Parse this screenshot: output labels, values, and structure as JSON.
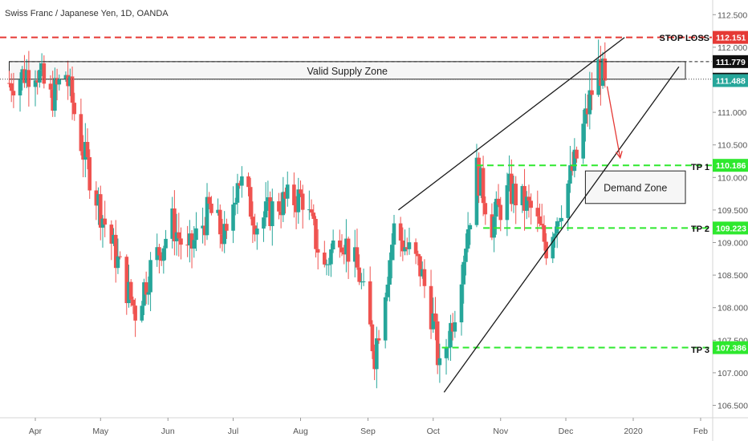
{
  "header": {
    "symbol_text": "Swiss Franc / Japanese Yen, 1D, OANDA"
  },
  "colors": {
    "up": "#26a69a",
    "down": "#ef5350",
    "stop": "#e53935",
    "tp": "#2ee82e",
    "line": "#1a1a1a",
    "current_price_bg": "#26a69a",
    "arrow": "#e53935"
  },
  "chart_data": {
    "type": "candlestick",
    "timeframe": "1D",
    "x_axis": {
      "ticks": [
        "Apr",
        "May",
        "Jun",
        "Jul",
        "Aug",
        "Sep",
        "Oct",
        "Nov",
        "Dec",
        "2020",
        "Feb"
      ],
      "range": [
        "2019-03-18",
        "2020-02-10"
      ]
    },
    "y_axis": {
      "range": [
        106.2,
        112.7
      ],
      "ticks": [
        "106.500",
        "107.000",
        "107.500",
        "108.000",
        "108.500",
        "109.000",
        "109.500",
        "110.000",
        "110.500",
        "111.000",
        "111.500",
        "112.000",
        "112.500"
      ]
    },
    "anchors": [
      {
        "date": "2019-03-20",
        "close": 111.45
      },
      {
        "date": "2019-04-01",
        "close": 111.7
      },
      {
        "date": "2019-04-08",
        "close": 111.2
      },
      {
        "date": "2019-04-15",
        "close": 111.6
      },
      {
        "date": "2019-04-23",
        "close": 110.4
      },
      {
        "date": "2019-05-01",
        "close": 109.5
      },
      {
        "date": "2019-05-13",
        "close": 108.3
      },
      {
        "date": "2019-05-17",
        "close": 107.95
      },
      {
        "date": "2019-05-24",
        "close": 108.6
      },
      {
        "date": "2019-06-03",
        "close": 109.3
      },
      {
        "date": "2019-06-10",
        "close": 108.8
      },
      {
        "date": "2019-06-20",
        "close": 109.5
      },
      {
        "date": "2019-06-28",
        "close": 109.0
      },
      {
        "date": "2019-07-03",
        "close": 110.05
      },
      {
        "date": "2019-07-12",
        "close": 109.3
      },
      {
        "date": "2019-07-22",
        "close": 109.6
      },
      {
        "date": "2019-08-02",
        "close": 109.7
      },
      {
        "date": "2019-08-12",
        "close": 108.6
      },
      {
        "date": "2019-08-19",
        "close": 109.2
      },
      {
        "date": "2019-08-28",
        "close": 108.5
      },
      {
        "date": "2019-09-04",
        "close": 107.3
      },
      {
        "date": "2019-09-13",
        "close": 109.2
      },
      {
        "date": "2019-09-25",
        "close": 108.6
      },
      {
        "date": "2019-10-01",
        "close": 107.8
      },
      {
        "date": "2019-10-04",
        "close": 107.0
      },
      {
        "date": "2019-10-11",
        "close": 108.0
      },
      {
        "date": "2019-10-21",
        "close": 110.1
      },
      {
        "date": "2019-10-28",
        "close": 109.3
      },
      {
        "date": "2019-11-05",
        "close": 109.8
      },
      {
        "date": "2019-11-15",
        "close": 109.5
      },
      {
        "date": "2019-11-22",
        "close": 108.95
      },
      {
        "date": "2019-11-29",
        "close": 109.6
      },
      {
        "date": "2019-12-06",
        "close": 110.3
      },
      {
        "date": "2019-12-12",
        "close": 111.2
      },
      {
        "date": "2019-12-16",
        "close": 111.7
      },
      {
        "date": "2019-12-19",
        "close": 111.488
      }
    ],
    "levels": [
      {
        "name": "STOP LOSS",
        "price": 112.151,
        "label": "112.151",
        "style": "dashed-red"
      },
      {
        "name": "zone-top",
        "price": 111.779,
        "label": "111.779",
        "style": "dashed-black"
      },
      {
        "name": "zone-bottom",
        "price": 111.509,
        "label": "111.509",
        "style": "dotted-black"
      },
      {
        "name": "current",
        "price": 111.488,
        "label": "111.488",
        "style": "tag"
      },
      {
        "name": "TP 1",
        "price": 110.186,
        "label": "110.186",
        "style": "dashed-green"
      },
      {
        "name": "TP 2",
        "price": 109.223,
        "label": "109.223",
        "style": "dashed-green"
      },
      {
        "name": "TP 3",
        "price": 107.386,
        "label": "107.386",
        "style": "dashed-green"
      }
    ],
    "zones": [
      {
        "label": "Valid Supply Zone",
        "from": "2019-03-20",
        "to": "2020-01-25",
        "low": 111.509,
        "high": 111.779
      },
      {
        "label": "Demand Zone",
        "from": "2019-12-10",
        "to": "2020-01-25",
        "low": 109.6,
        "high": 110.1
      }
    ],
    "trendlines": [
      {
        "from": {
          "date": "2019-09-15",
          "price": 109.5
        },
        "to": {
          "date": "2019-12-28",
          "price": 112.15
        }
      },
      {
        "from": {
          "date": "2019-10-06",
          "price": 106.7
        },
        "to": {
          "date": "2020-01-22",
          "price": 111.7
        }
      }
    ],
    "arrow": {
      "from": {
        "date": "2019-12-20",
        "price": 111.4
      },
      "to": {
        "date": "2019-12-26",
        "price": 110.3
      }
    },
    "annotations": [
      "STOP LOSS",
      "TP 1",
      "TP 2",
      "TP 3",
      "Valid Supply Zone",
      "Demand Zone"
    ]
  }
}
